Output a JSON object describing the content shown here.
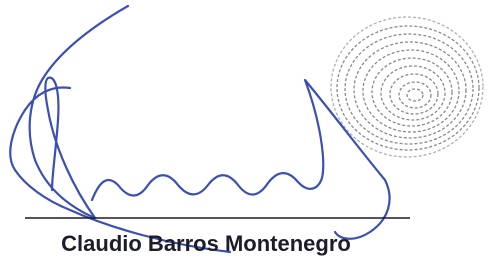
{
  "signature": {
    "name": "Claudio Barros Montenegro"
  }
}
